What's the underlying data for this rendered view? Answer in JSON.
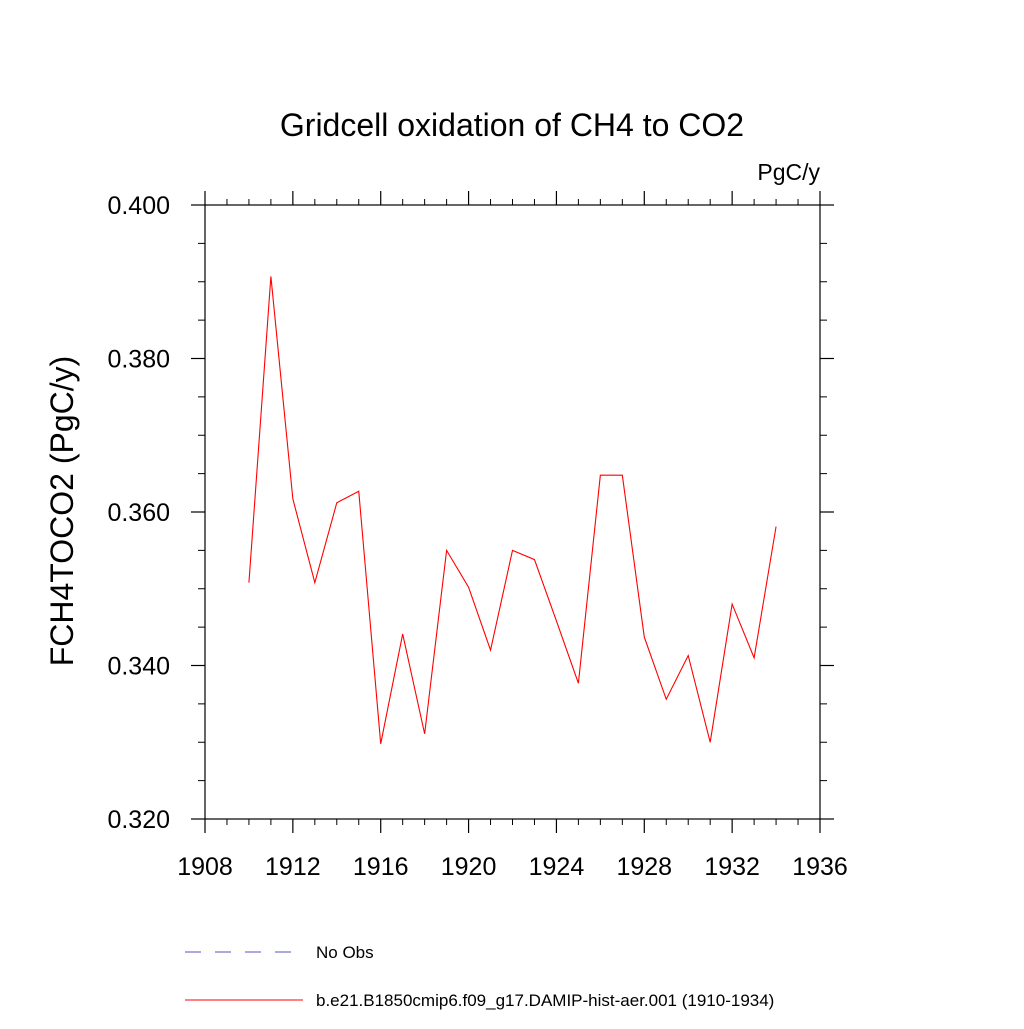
{
  "chart_data": {
    "type": "line",
    "title": "Gridcell oxidation of CH4 to CO2",
    "units_label": "PgC/y",
    "ylabel": "FCH4TOCO2  (PgC/y)",
    "xlabel": "",
    "xlim": [
      1908,
      1936
    ],
    "ylim": [
      0.32,
      0.4
    ],
    "x_ticks": [
      1908,
      1912,
      1916,
      1920,
      1924,
      1928,
      1932,
      1936
    ],
    "x_tick_labels": [
      "1908",
      "1912",
      "1916",
      "1920",
      "1924",
      "1928",
      "1932",
      "1936"
    ],
    "y_ticks": [
      0.32,
      0.34,
      0.36,
      0.38,
      0.4
    ],
    "y_tick_labels": [
      "0.320",
      "0.340",
      "0.360",
      "0.380",
      "0.400"
    ],
    "grid": false,
    "legend_position": "bottom",
    "series": [
      {
        "name": "b.e21.B1850cmip6.f09_g17.DAMIP-hist-aer.001 (1910-1934)",
        "color": "#ff0000",
        "style": "solid",
        "x": [
          1910,
          1911,
          1912,
          1913,
          1914,
          1915,
          1916,
          1917,
          1918,
          1919,
          1920,
          1921,
          1922,
          1923,
          1924,
          1925,
          1926,
          1927,
          1928,
          1929,
          1930,
          1931,
          1932,
          1933,
          1934
        ],
        "y": [
          0.3508,
          0.3907,
          0.3617,
          0.3508,
          0.3612,
          0.3627,
          0.3298,
          0.3441,
          0.3311,
          0.355,
          0.3502,
          0.342,
          0.355,
          0.3538,
          0.3458,
          0.3377,
          0.3648,
          0.3648,
          0.3437,
          0.3356,
          0.3413,
          0.33,
          0.348,
          0.341,
          0.3581
        ]
      }
    ],
    "legend": [
      {
        "label": "No Obs",
        "color": "#5555bb",
        "style": "dashed"
      },
      {
        "label": "b.e21.B1850cmip6.f09_g17.DAMIP-hist-aer.001 (1910-1934)",
        "color": "#ff0000",
        "style": "solid"
      }
    ]
  }
}
